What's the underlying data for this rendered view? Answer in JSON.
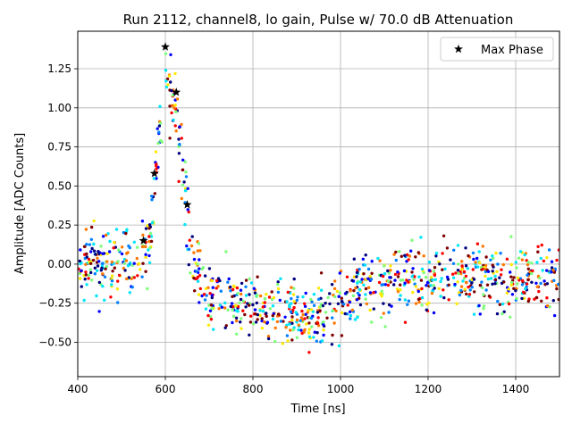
{
  "chart_data": {
    "type": "scatter",
    "title": "Run 2112, channel8, lo gain, Pulse w/ 70.0 dB Attenuation",
    "xlabel": "Time [ns]",
    "ylabel": "Amplitude [ADC Counts]",
    "xlim": [
      400,
      1500
    ],
    "ylim": [
      -0.72,
      1.49
    ],
    "xticks": [
      400,
      600,
      800,
      1000,
      1200,
      1400
    ],
    "xtick_labels": [
      "400",
      "600",
      "800",
      "1000",
      "1200",
      "1400"
    ],
    "yticks": [
      -0.5,
      -0.25,
      0.0,
      0.25,
      0.5,
      0.75,
      1.0,
      1.25
    ],
    "ytick_labels": [
      "−0.50",
      "−0.25",
      "0.00",
      "0.25",
      "0.50",
      "0.75",
      "1.00",
      "1.25"
    ],
    "grid": true,
    "legend": {
      "position": "top-right",
      "entries": [
        "Max Phase"
      ]
    },
    "series": [
      {
        "name": "Max Phase",
        "marker": "star",
        "color": "#000000",
        "x": [
          550,
          575,
          600,
          625,
          650
        ],
        "y": [
          0.15,
          0.58,
          1.39,
          1.1,
          0.38
        ]
      }
    ],
    "scatter_cloud": {
      "description_note": "many colored samples (jet colormap by trace)",
      "pulse_profile": {
        "t": [
          400,
          540,
          560,
          575,
          585,
          595,
          605,
          615,
          625,
          635,
          645,
          655,
          665,
          680,
          700,
          750,
          800,
          850,
          900,
          950,
          1000,
          1050,
          1100,
          1200,
          1300,
          1400,
          1500
        ],
        "amplitude": [
          0.0,
          0.0,
          0.1,
          0.45,
          0.8,
          1.1,
          1.2,
          1.1,
          0.95,
          0.72,
          0.42,
          0.2,
          0.05,
          -0.12,
          -0.22,
          -0.26,
          -0.28,
          -0.3,
          -0.33,
          -0.32,
          -0.25,
          -0.15,
          -0.12,
          -0.08,
          -0.08,
          -0.1,
          -0.1
        ]
      },
      "colors": [
        "#00007f",
        "#0000ff",
        "#0080ff",
        "#00e5f8",
        "#7dff7a",
        "#ffea00",
        "#ff7700",
        "#ff0000",
        "#7f0000"
      ]
    }
  }
}
